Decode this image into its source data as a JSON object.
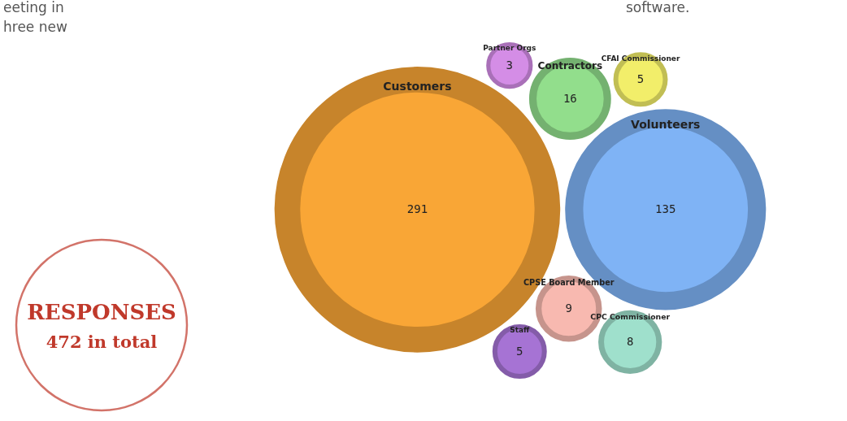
{
  "chart_data": {
    "type": "other",
    "data_labels": true,
    "categories": [
      "Customers",
      "CPC Commissioner",
      "CPSE Board Member",
      "CFAI Commissioner",
      "Volunteers",
      "Contractors",
      "Partner Orgs",
      "Staff"
    ],
    "values": [
      291,
      8,
      9,
      5,
      135,
      16,
      3,
      5
    ],
    "colors": [
      "#f9a636",
      "#9fe0cc",
      "#f8b9b0",
      "#f2ee6a",
      "#7fb3f5",
      "#92de8c",
      "#d48de6",
      "#a673d4"
    ],
    "annotations": [
      "RESPONSES",
      "472 in total",
      "eeting in",
      "hree new",
      "software."
    ]
  }
}
